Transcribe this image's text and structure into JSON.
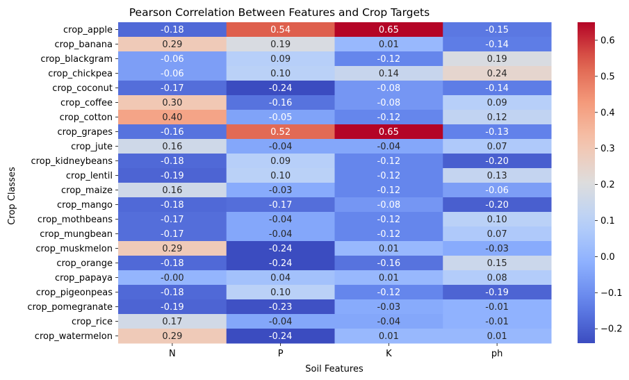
{
  "chart_data": {
    "type": "heatmap",
    "title": "Pearson Correlation Between Features and Crop Targets",
    "xlabel": "Soil Features",
    "ylabel": "Crop Classes",
    "x": [
      "N",
      "P",
      "K",
      "ph"
    ],
    "y": [
      "crop_apple",
      "crop_banana",
      "crop_blackgram",
      "crop_chickpea",
      "crop_coconut",
      "crop_coffee",
      "crop_cotton",
      "crop_grapes",
      "crop_jute",
      "crop_kidneybeans",
      "crop_lentil",
      "crop_maize",
      "crop_mango",
      "crop_mothbeans",
      "crop_mungbean",
      "crop_muskmelon",
      "crop_orange",
      "crop_papaya",
      "crop_pigeonpeas",
      "crop_pomegranate",
      "crop_rice",
      "crop_watermelon"
    ],
    "values": [
      [
        -0.18,
        0.54,
        0.65,
        -0.15
      ],
      [
        0.29,
        0.19,
        0.01,
        -0.14
      ],
      [
        -0.06,
        0.09,
        -0.12,
        0.19
      ],
      [
        -0.06,
        0.1,
        0.14,
        0.24
      ],
      [
        -0.17,
        -0.24,
        -0.08,
        -0.14
      ],
      [
        0.3,
        -0.16,
        -0.08,
        0.09
      ],
      [
        0.4,
        -0.05,
        -0.12,
        0.12
      ],
      [
        -0.16,
        0.52,
        0.65,
        -0.13
      ],
      [
        0.16,
        -0.04,
        -0.04,
        0.07
      ],
      [
        -0.18,
        0.09,
        -0.12,
        -0.2
      ],
      [
        -0.19,
        0.1,
        -0.12,
        0.13
      ],
      [
        0.16,
        -0.03,
        -0.12,
        -0.06
      ],
      [
        -0.18,
        -0.17,
        -0.08,
        -0.2
      ],
      [
        -0.17,
        -0.04,
        -0.12,
        0.1
      ],
      [
        -0.17,
        -0.04,
        -0.12,
        0.07
      ],
      [
        0.29,
        -0.24,
        0.01,
        -0.03
      ],
      [
        -0.18,
        -0.24,
        -0.16,
        0.15
      ],
      [
        -0.0,
        0.04,
        0.01,
        0.08
      ],
      [
        -0.18,
        0.1,
        -0.12,
        -0.19
      ],
      [
        -0.19,
        -0.23,
        -0.03,
        -0.01
      ],
      [
        0.17,
        -0.04,
        -0.04,
        -0.01
      ],
      [
        0.29,
        -0.24,
        0.01,
        0.01
      ]
    ],
    "value_labels": [
      [
        "-0.18",
        "0.54",
        "0.65",
        "-0.15"
      ],
      [
        "0.29",
        "0.19",
        "0.01",
        "-0.14"
      ],
      [
        "-0.06",
        "0.09",
        "-0.12",
        "0.19"
      ],
      [
        "-0.06",
        "0.10",
        "0.14",
        "0.24"
      ],
      [
        "-0.17",
        "-0.24",
        "-0.08",
        "-0.14"
      ],
      [
        "0.30",
        "-0.16",
        "-0.08",
        "0.09"
      ],
      [
        "0.40",
        "-0.05",
        "-0.12",
        "0.12"
      ],
      [
        "-0.16",
        "0.52",
        "0.65",
        "-0.13"
      ],
      [
        "0.16",
        "-0.04",
        "-0.04",
        "0.07"
      ],
      [
        "-0.18",
        "0.09",
        "-0.12",
        "-0.20"
      ],
      [
        "-0.19",
        "0.10",
        "-0.12",
        "0.13"
      ],
      [
        "0.16",
        "-0.03",
        "-0.12",
        "-0.06"
      ],
      [
        "-0.18",
        "-0.17",
        "-0.08",
        "-0.20"
      ],
      [
        "-0.17",
        "-0.04",
        "-0.12",
        "0.10"
      ],
      [
        "-0.17",
        "-0.04",
        "-0.12",
        "0.07"
      ],
      [
        "0.29",
        "-0.24",
        "0.01",
        "-0.03"
      ],
      [
        "-0.18",
        "-0.24",
        "-0.16",
        "0.15"
      ],
      [
        "-0.00",
        "0.04",
        "0.01",
        "0.08"
      ],
      [
        "-0.18",
        "0.10",
        "-0.12",
        "-0.19"
      ],
      [
        "-0.19",
        "-0.23",
        "-0.03",
        "-0.01"
      ],
      [
        "0.17",
        "-0.04",
        "-0.04",
        "-0.01"
      ],
      [
        "0.29",
        "-0.24",
        "0.01",
        "0.01"
      ]
    ],
    "colormap": "coolwarm",
    "color_range": [
      -0.24,
      0.65
    ],
    "colorbar_ticks": [
      "−0.2",
      "−0.1",
      "0.0",
      "0.1",
      "0.2",
      "0.3",
      "0.4",
      "0.5",
      "0.6"
    ],
    "colorbar_tick_values": [
      -0.2,
      -0.1,
      0.0,
      0.1,
      0.2,
      0.3,
      0.4,
      0.5,
      0.6
    ],
    "grid": false,
    "legend": "colorbar-right"
  }
}
